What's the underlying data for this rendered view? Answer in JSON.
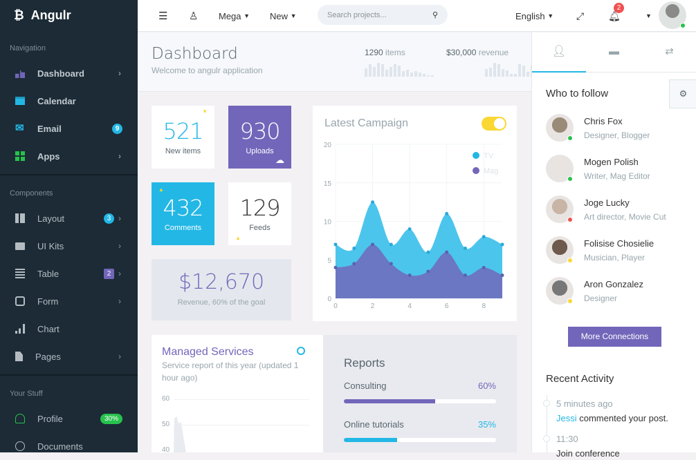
{
  "brand": {
    "name": "Angulr"
  },
  "sidebar": {
    "sections": [
      {
        "title": "Navigation"
      },
      {
        "title": "Components"
      },
      {
        "title": "Your Stuff"
      }
    ],
    "nav": [
      {
        "label": "Dashboard"
      },
      {
        "label": "Calendar"
      },
      {
        "label": "Email",
        "badge": "9"
      },
      {
        "label": "Apps"
      }
    ],
    "components": [
      {
        "label": "Layout",
        "badge": "3"
      },
      {
        "label": "UI Kits"
      },
      {
        "label": "Table",
        "badge": "2"
      },
      {
        "label": "Form"
      },
      {
        "label": "Chart"
      },
      {
        "label": "Pages"
      }
    ],
    "stuff": [
      {
        "label": "Profile",
        "badge": "30%"
      },
      {
        "label": "Documents"
      }
    ]
  },
  "header": {
    "mega": "Mega",
    "new": "New",
    "search_placeholder": "Search projects...",
    "language": "English",
    "notifications": "2"
  },
  "page": {
    "title": "Dashboard",
    "subtitle": "Welcome to angulr application",
    "stat1": {
      "value": "1290",
      "unit": "items",
      "sparkline": [
        6,
        9,
        7,
        10,
        9,
        5,
        7,
        9,
        8,
        4,
        5,
        3,
        4,
        3,
        2,
        1,
        1
      ]
    },
    "stat2": {
      "value": "$30,000",
      "unit": "revenue",
      "sparkline": [
        5,
        6,
        9,
        8,
        5,
        4,
        2,
        2,
        8,
        7,
        3,
        7,
        9,
        8,
        9
      ]
    }
  },
  "tiles": [
    {
      "value": "521",
      "label": "New items"
    },
    {
      "value": "930",
      "label": "Uploads"
    },
    {
      "value": "432",
      "label": "Comments"
    },
    {
      "value": "129",
      "label": "Feeds"
    }
  ],
  "revenue": {
    "value": "$12,670",
    "label": "Revenue, 60% of the goal"
  },
  "campaign": {
    "title": "Latest Campaign",
    "toggle_on": true
  },
  "chart_data": {
    "type": "area",
    "x": [
      0,
      1,
      2,
      3,
      4,
      5,
      6,
      7,
      8,
      9
    ],
    "series": [
      {
        "name": "TV",
        "color": "#4cc5ec",
        "values": [
          7,
          6.5,
          12.5,
          7,
          9,
          6,
          11,
          6.5,
          8,
          7
        ]
      },
      {
        "name": "Mag",
        "color": "#6b77c2",
        "values": [
          4,
          4.5,
          7,
          4.5,
          3,
          3.5,
          6,
          3,
          4,
          3
        ]
      }
    ],
    "xticks": [
      0,
      2,
      4,
      6,
      8
    ],
    "yticks": [
      0,
      5,
      10,
      15,
      20
    ],
    "ylim": [
      0,
      20
    ],
    "xlim": [
      0,
      9
    ],
    "legend": "top-right",
    "grid": true
  },
  "managed": {
    "title": "Managed Services",
    "subtitle": "Service report of this year (updated 1 hour ago)",
    "yticks": [
      "60",
      "50",
      "40"
    ]
  },
  "reports": {
    "title": "Reports",
    "items": [
      {
        "label": "Consulting",
        "percent": 60,
        "percent_label": "60%",
        "color": "#7266ba"
      },
      {
        "label": "Online tutorials",
        "percent": 35,
        "percent_label": "35%",
        "color": "#23b7e5"
      }
    ]
  },
  "follow": {
    "title": "Who to follow",
    "people": [
      {
        "name": "Chris Fox",
        "role": "Designer, Blogger",
        "status": "#27c24c"
      },
      {
        "name": "Mogen Polish",
        "role": "Writer, Mag Editor",
        "status": "#27c24c"
      },
      {
        "name": "Joge Lucky",
        "role": "Art director, Movie Cut",
        "status": "#f05050"
      },
      {
        "name": "Folisise Chosielie",
        "role": "Musician, Player",
        "status": "#fad733"
      },
      {
        "name": "Aron Gonzalez",
        "role": "Designer",
        "status": "#fad733"
      }
    ],
    "more": "More Connections"
  },
  "activity": {
    "title": "Recent Activity",
    "items": [
      {
        "time": "5 minutes ago",
        "user": "Jessi",
        "text": "commented your post."
      },
      {
        "time": "11:30",
        "text": "Join conference"
      }
    ]
  }
}
